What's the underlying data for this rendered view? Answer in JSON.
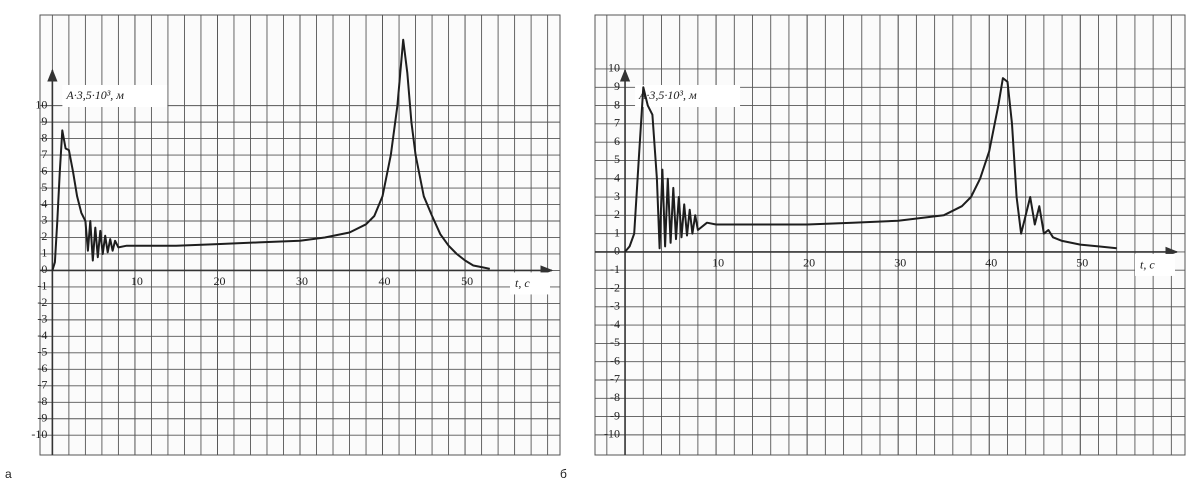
{
  "chart_data": [
    {
      "type": "line",
      "label": "а",
      "y_label": "A·3,5·10³, м",
      "x_label": "t, с",
      "xlim": [
        -1.5,
        61.5
      ],
      "ylim": [
        -11.2,
        15.5
      ],
      "xticks": [
        10,
        20,
        30,
        40,
        50
      ],
      "yticks": [
        -10,
        -9,
        -8,
        -7,
        -6,
        -5,
        -4,
        -3,
        -2,
        -1,
        0,
        1,
        2,
        3,
        4,
        5,
        6,
        7,
        8,
        9,
        10
      ],
      "grid": true,
      "series": [
        {
          "color": "#1e1e1e",
          "x": [
            0,
            0.3,
            0.6,
            0.9,
            1.2,
            1.6,
            2,
            2.5,
            3,
            3.5,
            4,
            4.3,
            4.6,
            4.9,
            5.2,
            5.5,
            5.8,
            6.1,
            6.4,
            6.7,
            7,
            7.3,
            7.6,
            8,
            9,
            10,
            15,
            20,
            25,
            30,
            33,
            36,
            38,
            39,
            40,
            41,
            41.8,
            42.5,
            43,
            43.5,
            44,
            45,
            46,
            47,
            48,
            49,
            50,
            51,
            52,
            53
          ],
          "values": [
            0,
            0.5,
            3,
            6,
            8.5,
            7.4,
            7.3,
            6,
            4.5,
            3.5,
            3,
            1.2,
            3,
            0.6,
            2.6,
            0.8,
            2.4,
            1,
            2.1,
            1.1,
            1.9,
            1.2,
            1.8,
            1.4,
            1.5,
            1.5,
            1.5,
            1.6,
            1.7,
            1.8,
            2,
            2.3,
            2.8,
            3.3,
            4.5,
            7,
            10,
            14,
            12,
            9,
            7,
            4.5,
            3.3,
            2.2,
            1.5,
            1,
            0.6,
            0.3,
            0.2,
            0.1
          ]
        }
      ]
    },
    {
      "type": "line",
      "label": "б",
      "y_label": "A·3,5·10³, м",
      "x_label": "t, с",
      "xlim": [
        -3.3,
        61.5
      ],
      "ylim": [
        -11.1,
        12.95
      ],
      "xticks": [
        10,
        20,
        30,
        40,
        50
      ],
      "yticks": [
        -10,
        -9,
        -8,
        -7,
        -6,
        -5,
        -4,
        -3,
        -2,
        -1,
        0,
        1,
        2,
        3,
        4,
        5,
        6,
        7,
        8,
        9,
        10
      ],
      "grid": true,
      "series": [
        {
          "color": "#1e1e1e",
          "x": [
            0,
            0.5,
            1,
            1.5,
            2,
            2.5,
            3,
            3.5,
            3.8,
            4.1,
            4.4,
            4.7,
            5,
            5.3,
            5.6,
            5.9,
            6.2,
            6.5,
            6.8,
            7.1,
            7.4,
            7.7,
            8,
            9,
            10,
            12,
            15,
            20,
            25,
            30,
            35,
            37,
            38,
            39,
            40,
            41,
            41.5,
            42,
            42.5,
            43,
            43.5,
            44,
            44.5,
            45,
            45.5,
            46,
            46.5,
            47,
            48,
            50,
            52,
            54
          ],
          "values": [
            0,
            0.3,
            1,
            5,
            9,
            8,
            7.5,
            4,
            0.2,
            4.5,
            0.3,
            4,
            0.5,
            3.5,
            0.7,
            3,
            0.8,
            2.6,
            0.9,
            2.3,
            1,
            2,
            1.2,
            1.6,
            1.5,
            1.5,
            1.5,
            1.5,
            1.6,
            1.7,
            2,
            2.5,
            3,
            4,
            5.5,
            8,
            9.5,
            9.3,
            7,
            3,
            1,
            2,
            3,
            1.5,
            2.5,
            1,
            1.2,
            0.8,
            0.6,
            0.4,
            0.3,
            0.2
          ]
        }
      ]
    }
  ]
}
